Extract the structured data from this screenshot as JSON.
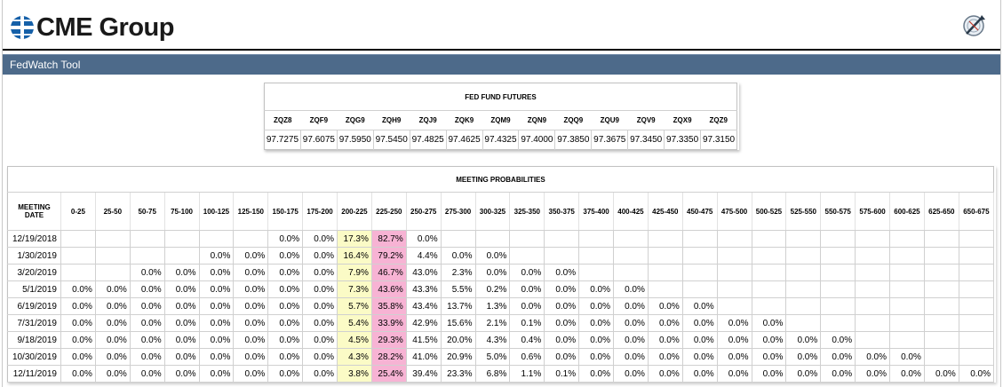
{
  "header": {
    "brand": "CME Group",
    "tool_icon": "fedwatch-logo-icon"
  },
  "titlebar": {
    "title": "FedWatch Tool"
  },
  "futures": {
    "title": "FED FUND FUTURES",
    "codes": [
      "ZQZ8",
      "ZQF9",
      "ZQG9",
      "ZQH9",
      "ZQJ9",
      "ZQK9",
      "ZQM9",
      "ZQN9",
      "ZQQ9",
      "ZQU9",
      "ZQV9",
      "ZQX9",
      "ZQZ9"
    ],
    "prices": [
      "97.7275",
      "97.6075",
      "97.5950",
      "97.5450",
      "97.4825",
      "97.4625",
      "97.4325",
      "97.4000",
      "97.3850",
      "97.3675",
      "97.3450",
      "97.3350",
      "97.3150"
    ]
  },
  "probabilities": {
    "title": "MEETING PROBABILITIES",
    "date_header": "MEETING DATE",
    "ranges": [
      "0-25",
      "25-50",
      "50-75",
      "75-100",
      "100-125",
      "125-150",
      "150-175",
      "175-200",
      "200-225",
      "225-250",
      "250-275",
      "275-300",
      "300-325",
      "325-350",
      "350-375",
      "375-400",
      "400-425",
      "425-450",
      "450-475",
      "475-500",
      "500-525",
      "525-550",
      "550-575",
      "575-600",
      "600-625",
      "625-650",
      "650-675"
    ],
    "highlight_colors": {
      "current_target": "#fbfbc6",
      "most_likely": "#f7b3d4"
    },
    "rows": [
      {
        "date": "12/19/2018",
        "values": [
          "",
          "",
          "",
          "",
          "",
          "",
          "0.0%",
          "0.0%",
          "17.3%",
          "82.7%",
          "0.0%",
          "",
          "",
          "",
          "",
          "",
          "",
          "",
          "",
          "",
          "",
          "",
          "",
          "",
          "",
          "",
          ""
        ]
      },
      {
        "date": "1/30/2019",
        "values": [
          "",
          "",
          "",
          "",
          "0.0%",
          "0.0%",
          "0.0%",
          "0.0%",
          "16.4%",
          "79.2%",
          "4.4%",
          "0.0%",
          "0.0%",
          "",
          "",
          "",
          "",
          "",
          "",
          "",
          "",
          "",
          "",
          "",
          "",
          "",
          ""
        ]
      },
      {
        "date": "3/20/2019",
        "values": [
          "",
          "",
          "0.0%",
          "0.0%",
          "0.0%",
          "0.0%",
          "0.0%",
          "0.0%",
          "7.9%",
          "46.7%",
          "43.0%",
          "2.3%",
          "0.0%",
          "0.0%",
          "0.0%",
          "",
          "",
          "",
          "",
          "",
          "",
          "",
          "",
          "",
          "",
          "",
          ""
        ]
      },
      {
        "date": "5/1/2019",
        "values": [
          "0.0%",
          "0.0%",
          "0.0%",
          "0.0%",
          "0.0%",
          "0.0%",
          "0.0%",
          "0.0%",
          "7.3%",
          "43.6%",
          "43.3%",
          "5.5%",
          "0.2%",
          "0.0%",
          "0.0%",
          "0.0%",
          "0.0%",
          "",
          "",
          "",
          "",
          "",
          "",
          "",
          "",
          "",
          ""
        ]
      },
      {
        "date": "6/19/2019",
        "values": [
          "0.0%",
          "0.0%",
          "0.0%",
          "0.0%",
          "0.0%",
          "0.0%",
          "0.0%",
          "0.0%",
          "5.7%",
          "35.8%",
          "43.4%",
          "13.7%",
          "1.3%",
          "0.0%",
          "0.0%",
          "0.0%",
          "0.0%",
          "0.0%",
          "0.0%",
          "",
          "",
          "",
          "",
          "",
          "",
          "",
          ""
        ]
      },
      {
        "date": "7/31/2019",
        "values": [
          "0.0%",
          "0.0%",
          "0.0%",
          "0.0%",
          "0.0%",
          "0.0%",
          "0.0%",
          "0.0%",
          "5.4%",
          "33.9%",
          "42.9%",
          "15.6%",
          "2.1%",
          "0.1%",
          "0.0%",
          "0.0%",
          "0.0%",
          "0.0%",
          "0.0%",
          "0.0%",
          "0.0%",
          "",
          "",
          "",
          "",
          "",
          ""
        ]
      },
      {
        "date": "9/18/2019",
        "values": [
          "0.0%",
          "0.0%",
          "0.0%",
          "0.0%",
          "0.0%",
          "0.0%",
          "0.0%",
          "0.0%",
          "4.5%",
          "29.3%",
          "41.5%",
          "20.0%",
          "4.3%",
          "0.4%",
          "0.0%",
          "0.0%",
          "0.0%",
          "0.0%",
          "0.0%",
          "0.0%",
          "0.0%",
          "0.0%",
          "0.0%",
          "",
          "",
          "",
          ""
        ]
      },
      {
        "date": "10/30/2019",
        "values": [
          "0.0%",
          "0.0%",
          "0.0%",
          "0.0%",
          "0.0%",
          "0.0%",
          "0.0%",
          "0.0%",
          "4.3%",
          "28.2%",
          "41.0%",
          "20.9%",
          "5.0%",
          "0.6%",
          "0.0%",
          "0.0%",
          "0.0%",
          "0.0%",
          "0.0%",
          "0.0%",
          "0.0%",
          "0.0%",
          "0.0%",
          "0.0%",
          "0.0%",
          "",
          ""
        ]
      },
      {
        "date": "12/11/2019",
        "values": [
          "0.0%",
          "0.0%",
          "0.0%",
          "0.0%",
          "0.0%",
          "0.0%",
          "0.0%",
          "0.0%",
          "3.8%",
          "25.4%",
          "39.4%",
          "23.3%",
          "6.8%",
          "1.1%",
          "0.1%",
          "0.0%",
          "0.0%",
          "0.0%",
          "0.0%",
          "0.0%",
          "0.0%",
          "0.0%",
          "0.0%",
          "0.0%",
          "0.0%",
          "0.0%",
          "0.0%"
        ]
      }
    ]
  }
}
